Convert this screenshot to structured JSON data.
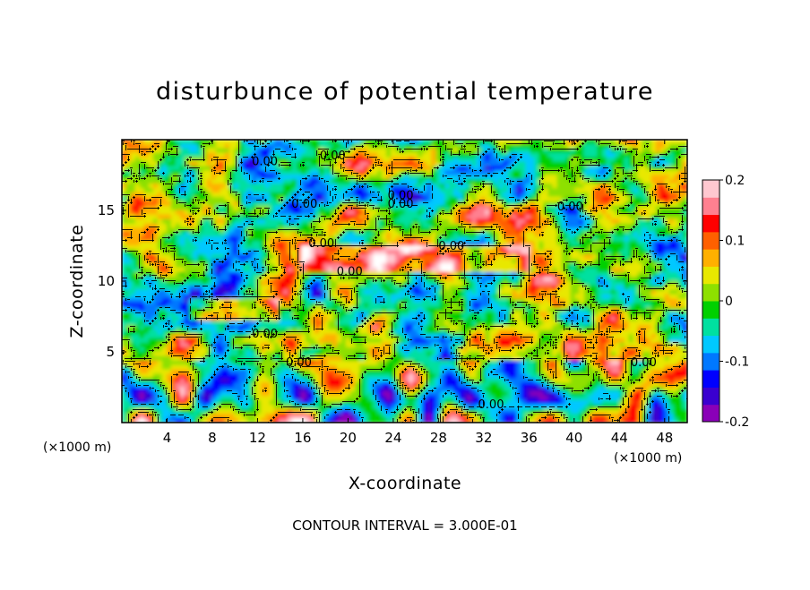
{
  "chart_data": {
    "type": "heatmap",
    "title": "disturbunce of potential temperature",
    "xlabel": "X-coordinate",
    "ylabel": "Z-coordinate",
    "x_unit": "(×1000 m)",
    "y_unit": "(×1000 m)",
    "xlim": [
      0,
      50
    ],
    "ylim": [
      0,
      20
    ],
    "x_ticks": [
      "4",
      "8",
      "12",
      "16",
      "20",
      "24",
      "28",
      "32",
      "36",
      "40",
      "44",
      "48"
    ],
    "y_ticks": [
      "5",
      "10",
      "15"
    ],
    "colorbar": {
      "range": [
        -0.2,
        0.2
      ],
      "tick_labels": [
        "0.2",
        "0.1",
        "0",
        "-0.1",
        "-0.2"
      ],
      "colors": [
        "#8a00b8",
        "#3a00d0",
        "#0000ff",
        "#0078ff",
        "#00c8ff",
        "#00e0a0",
        "#00d000",
        "#8ee000",
        "#e8e800",
        "#ffb000",
        "#ff6000",
        "#ff0000",
        "#ff8090",
        "#ffc8d0"
      ]
    },
    "contour_labels": [
      "0.00",
      "0.00",
      "0.00",
      "0.00",
      "0.00",
      "0.00",
      "0.00",
      "0.00",
      "0.00",
      "0.00",
      "0.00",
      "0.00",
      "0.00"
    ],
    "contour_interval_text": "CONTOUR INTERVAL = 3.000E-01"
  },
  "colors": {
    "background": "#ffffff",
    "frame": "#000000"
  }
}
